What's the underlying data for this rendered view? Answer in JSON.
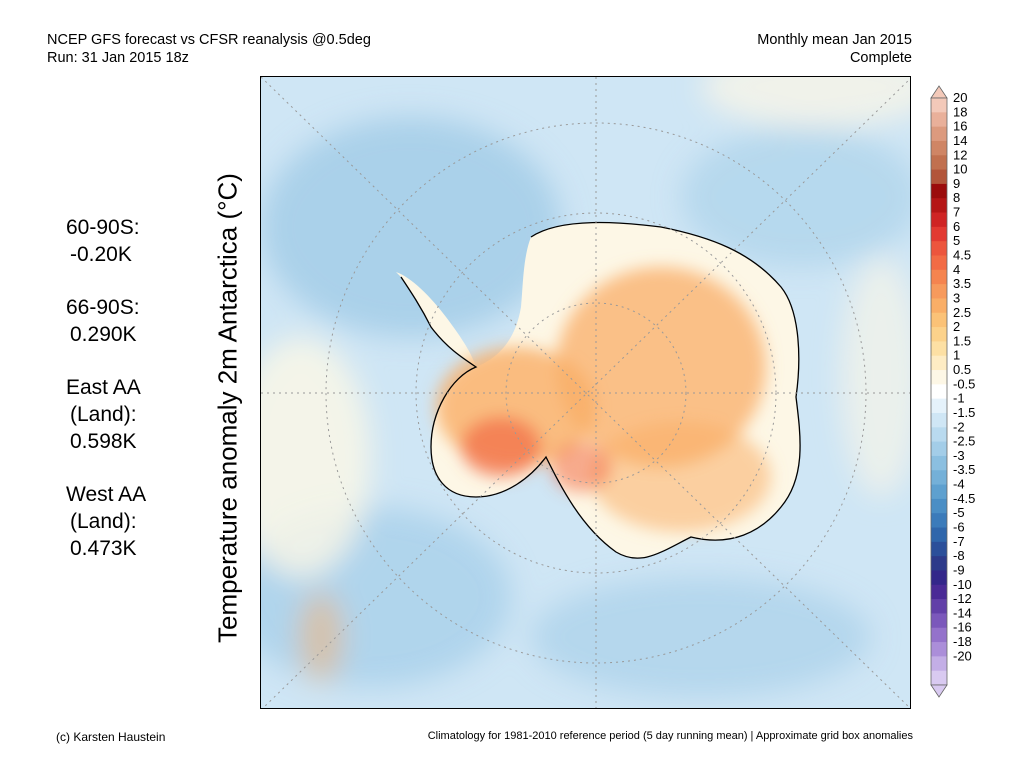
{
  "header": {
    "left_line1": "NCEP GFS forecast vs CFSR reanalysis @0.5deg",
    "left_line2": "Run: 31 Jan 2015 18z",
    "right_line1": "Monthly mean Jan 2015",
    "right_line2": "Complete"
  },
  "y_axis_title": "Temperature anomaly 2m Antarctica (°C)",
  "stats": [
    {
      "region": [
        "60-90S:"
      ],
      "value": "-0.20K"
    },
    {
      "region": [
        "66-90S:"
      ],
      "value": "0.290K"
    },
    {
      "region": [
        "East AA",
        "(Land):"
      ],
      "value": "0.598K"
    },
    {
      "region": [
        "West AA",
        "(Land):"
      ],
      "value": "0.473K"
    }
  ],
  "colorbar": {
    "labels": [
      "20",
      "18",
      "16",
      "14",
      "12",
      "10",
      "9",
      "8",
      "7",
      "6",
      "5",
      "4.5",
      "4",
      "3.5",
      "3",
      "2.5",
      "2",
      "1.5",
      "1",
      "0.5",
      "-0.5",
      "-1",
      "-1.5",
      "-2",
      "-2.5",
      "-3",
      "-3.5",
      "-4",
      "-4.5",
      "-5",
      "-6",
      "-7",
      "-8",
      "-9",
      "-10",
      "-12",
      "-14",
      "-16",
      "-18",
      "-20"
    ],
    "colors": [
      "#f3c9b9",
      "#e9b09a",
      "#dc9a7e",
      "#cf8565",
      "#c1704f",
      "#b2553a",
      "#9b0c0c",
      "#b51616",
      "#cf2424",
      "#e23a32",
      "#ec553d",
      "#f26b45",
      "#f5844f",
      "#f79a5c",
      "#f9ae67",
      "#fbc277",
      "#fcd28b",
      "#fde0a4",
      "#feecc4",
      "#fdf7e6",
      "#ffffff",
      "#e5f2fb",
      "#cfe6f5",
      "#b9daef",
      "#a3cde8",
      "#8bbfe0",
      "#74b0d8",
      "#5ea0cf",
      "#4a8ec5",
      "#3b7bba",
      "#2f66ab",
      "#2b4f9a",
      "#2d3a8a",
      "#33268a",
      "#4a2a96",
      "#6240a8",
      "#7b58bb",
      "#9472cb",
      "#ab8ed9",
      "#c3aee6",
      "#d9caf1"
    ],
    "ticks": [
      20,
      18,
      16,
      14,
      12,
      10,
      9,
      8,
      7,
      6,
      5,
      4.5,
      4,
      3.5,
      3,
      2.5,
      2,
      1.5,
      1,
      0.5,
      -0.5,
      -1,
      -1.5,
      -2,
      -2.5,
      -3,
      -3.5,
      -4,
      -4.5,
      -5,
      -6,
      -7,
      -8,
      -9,
      -10,
      -12,
      -14,
      -16,
      -18,
      -20
    ]
  },
  "map": {
    "ocean_color": "#cfe6f5",
    "ice_color": "#fdf7e6",
    "warm_color": "#f9ae67",
    "hot_color": "#f26b45",
    "cold_color": "#a3cde8"
  },
  "footer": {
    "left": "(c) Karsten Haustein",
    "right": "Climatology for 1981-2010 reference period (5 day running mean) | Approximate grid box anomalies"
  }
}
